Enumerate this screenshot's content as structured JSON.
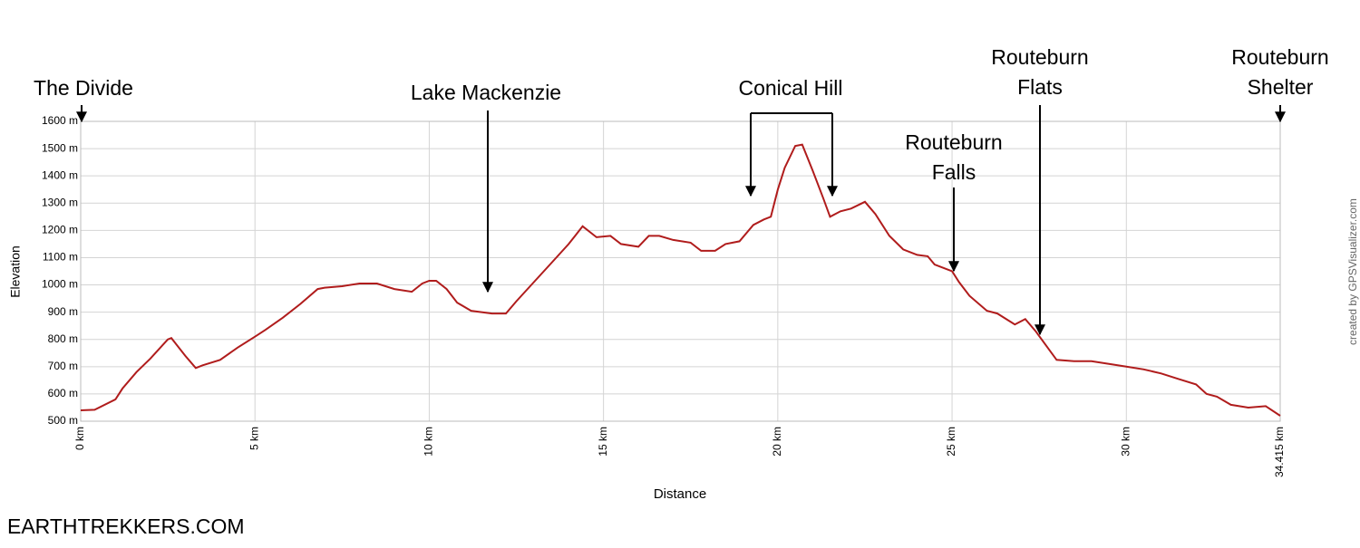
{
  "chart_data": {
    "type": "line",
    "y_label": "Elevation",
    "x_label": "Distance",
    "credit": "created by GPSVisualizer.com",
    "watermark": "EARTHTREKKERS.COM",
    "color": "#b01c1c",
    "grid": true,
    "xlim": [
      0,
      34.415
    ],
    "ylim": [
      500,
      1600
    ],
    "xticks": [
      {
        "value": 0,
        "label": "0 km"
      },
      {
        "value": 5,
        "label": "5 km"
      },
      {
        "value": 10,
        "label": "10 km"
      },
      {
        "value": 15,
        "label": "15 km"
      },
      {
        "value": 20,
        "label": "20 km"
      },
      {
        "value": 25,
        "label": "25 km"
      },
      {
        "value": 30,
        "label": "30 km"
      },
      {
        "value": 34.415,
        "label": "34.415 km"
      }
    ],
    "yticks": [
      {
        "value": 500,
        "label": "500 m"
      },
      {
        "value": 600,
        "label": "600 m"
      },
      {
        "value": 700,
        "label": "700 m"
      },
      {
        "value": 800,
        "label": "800 m"
      },
      {
        "value": 900,
        "label": "900 m"
      },
      {
        "value": 1000,
        "label": "1000 m"
      },
      {
        "value": 1100,
        "label": "1100 m"
      },
      {
        "value": 1200,
        "label": "1200 m"
      },
      {
        "value": 1300,
        "label": "1300 m"
      },
      {
        "value": 1400,
        "label": "1400 m"
      },
      {
        "value": 1500,
        "label": "1500 m"
      },
      {
        "value": 1600,
        "label": "1600 m"
      }
    ],
    "x": [
      0,
      0.4,
      1.0,
      1.2,
      1.6,
      2.0,
      2.5,
      2.6,
      3.0,
      3.3,
      3.5,
      4.0,
      4.5,
      5.0,
      5.3,
      5.8,
      6.3,
      6.8,
      7.0,
      7.5,
      8.0,
      8.5,
      9.0,
      9.5,
      9.8,
      10.0,
      10.2,
      10.5,
      10.8,
      11.2,
      11.8,
      12.2,
      12.5,
      13.0,
      13.5,
      14.0,
      14.4,
      14.6,
      14.8,
      15.2,
      15.5,
      16.0,
      16.3,
      16.6,
      17.0,
      17.5,
      17.8,
      18.2,
      18.5,
      18.9,
      19.3,
      19.6,
      19.8,
      20.0,
      20.2,
      20.5,
      20.7,
      21.0,
      21.3,
      21.5,
      21.8,
      22.1,
      22.5,
      22.8,
      23.2,
      23.6,
      24.0,
      24.3,
      24.5,
      25.0,
      25.2,
      25.5,
      26.0,
      26.3,
      26.8,
      27.1,
      27.4,
      27.8,
      28.0,
      28.5,
      29.0,
      29.5,
      30.0,
      30.5,
      31.0,
      31.5,
      32.0,
      32.3,
      32.6,
      33.0,
      33.5,
      34.0,
      34.415
    ],
    "values": [
      540,
      542,
      580,
      620,
      680,
      730,
      800,
      805,
      740,
      695,
      705,
      725,
      770,
      810,
      835,
      880,
      930,
      985,
      990,
      995,
      1005,
      1005,
      985,
      975,
      1005,
      1015,
      1015,
      985,
      935,
      905,
      895,
      895,
      940,
      1010,
      1080,
      1150,
      1215,
      1195,
      1175,
      1180,
      1150,
      1140,
      1180,
      1180,
      1165,
      1155,
      1125,
      1125,
      1150,
      1160,
      1220,
      1240,
      1250,
      1350,
      1430,
      1510,
      1515,
      1420,
      1320,
      1250,
      1270,
      1280,
      1305,
      1260,
      1180,
      1130,
      1110,
      1105,
      1075,
      1050,
      1010,
      960,
      905,
      895,
      855,
      875,
      830,
      760,
      725,
      720,
      720,
      710,
      700,
      690,
      675,
      655,
      635,
      600,
      590,
      560,
      550,
      555,
      520
    ],
    "annotations": [
      {
        "lines": [
          "The Divide"
        ]
      },
      {
        "lines": [
          "Lake Mackenzie"
        ]
      },
      {
        "lines": [
          "Conical Hill"
        ]
      },
      {
        "lines": [
          "Routeburn",
          "Falls"
        ]
      },
      {
        "lines": [
          "Routeburn",
          "Flats"
        ]
      },
      {
        "lines": [
          "Routeburn",
          "Shelter"
        ]
      }
    ]
  }
}
